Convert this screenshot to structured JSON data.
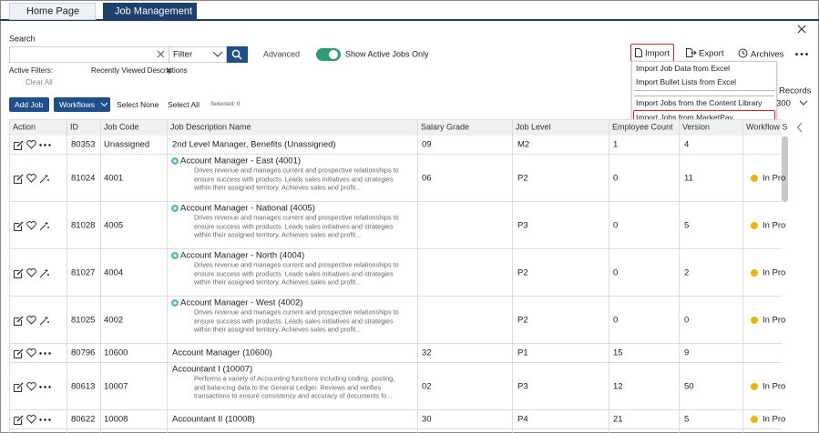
{
  "tabs": [
    "Home Page",
    "Job Management"
  ],
  "toolbar": {
    "search_label": "Search",
    "filter": "Filter",
    "advanced": "Advanced",
    "active_toggle": "Show Active Jobs Only",
    "import": "Import",
    "export": "Export",
    "archives": "Archives"
  },
  "import_menu": [
    "Import Job Data from Excel",
    "Import Bullet Lists from Excel",
    "Import Jobs from the Content Library",
    "Import Jobs from MarketPay"
  ],
  "records": {
    "label": "Records",
    "value": "300"
  },
  "filters": {
    "label": "Active Filters:",
    "chip": "Recently Viewed Descriptions",
    "clear": "Clear All"
  },
  "actions": {
    "add_job": "Add Job",
    "workflows": "Workflows",
    "select_none": "Select None",
    "select_all": "Select All",
    "selected": "Selected: 0"
  },
  "table": {
    "columns": [
      "Action",
      "ID",
      "Job Code",
      "Job Description Name",
      "Salary Grade",
      "Job Level",
      "Employee Count",
      "Version",
      "Workflow S"
    ],
    "rows": [
      {
        "id": "80353",
        "code": "Unassigned",
        "name": "2nd Level Manager, Benefits (Unassigned)",
        "description": null,
        "grade": "09",
        "level": "M2",
        "count": "1",
        "version": "4",
        "status": null,
        "library": false
      },
      {
        "id": "81024",
        "code": "4001",
        "name": "Account Manager - East (4001)",
        "description": [
          "Drives revenue and manages current and prospective relationships to",
          "ensure success with products.  Leads sales initiatives and strategies",
          "within their assigned territory.  Achieves sales and profit..."
        ],
        "grade": "06",
        "level": "P2",
        "count": "0",
        "version": "11",
        "status": "In Pro",
        "library": true
      },
      {
        "id": "81028",
        "code": "4005",
        "name": "Account Manager - National (4005)",
        "description": [
          "Drives revenue and manages current and prospective relationships to",
          "ensure success with products.  Leads sales initiatives and strategies",
          "within their assigned territory.  Achieves sales and profit..."
        ],
        "grade": null,
        "level": "P3",
        "count": "0",
        "version": "5",
        "status": "In Pro",
        "library": true
      },
      {
        "id": "81027",
        "code": "4004",
        "name": "Account Manager - North (4004)",
        "description": [
          "Drives revenue and manages current and prospective relationships to",
          "ensure success with products.  Leads sales initiatives and strategies",
          "within their assigned territory.  Achieves sales and profit..."
        ],
        "grade": null,
        "level": "P2",
        "count": "0",
        "version": "2",
        "status": "In Pro",
        "library": true
      },
      {
        "id": "81025",
        "code": "4002",
        "name": "Account Manager - West (4002)",
        "description": [
          "Drives revenue and manages current and prospective relationships to",
          "ensure success with products.  Leads sales initiatives and strategies",
          "within their assigned territory.  Achieves sales and profit..."
        ],
        "grade": null,
        "level": "P2",
        "count": "0",
        "version": "0",
        "status": "In Pro",
        "library": true
      },
      {
        "id": "80796",
        "code": "10600",
        "name": "Account Manager (10600)",
        "description": null,
        "grade": "32",
        "level": "P1",
        "count": "15",
        "version": "9",
        "status": null,
        "library": false
      },
      {
        "id": "80613",
        "code": "10007",
        "name": "Accountant I (10007)",
        "description": [
          "Performs a variety of Accounting functions including coding, posting,",
          "and balancing data to the General Ledger.  Reviews and verifies",
          "transactions to ensure consistency and accuracy of documents fo..."
        ],
        "grade": "02",
        "level": "P3",
        "count": "12",
        "version": "50",
        "status": "In Pro",
        "library": false
      },
      {
        "id": "80622",
        "code": "10008",
        "name": "Accountant II (10008)",
        "description": null,
        "grade": "30",
        "level": "P4",
        "count": "21",
        "version": "5",
        "status": "In Pro",
        "library": false
      }
    ]
  }
}
